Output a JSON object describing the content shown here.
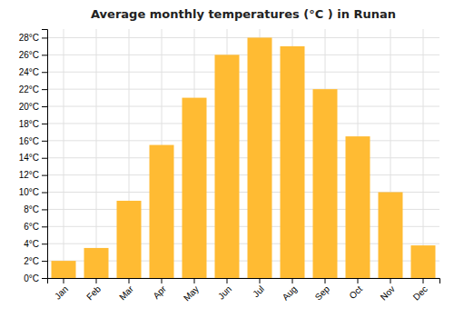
{
  "chart_data": {
    "type": "bar",
    "title": "Average monthly temperatures (°C ) in Runan",
    "categories": [
      "Jan",
      "Feb",
      "Mar",
      "Apr",
      "May",
      "Jun",
      "Jul",
      "Aug",
      "Sep",
      "Oct",
      "Nov",
      "Dec"
    ],
    "values": [
      2,
      3.5,
      9,
      15.5,
      21,
      26,
      28,
      27,
      22,
      16.5,
      10,
      3.8
    ],
    "color": "#FFBB33",
    "ylim": [
      0,
      29
    ],
    "yticks": [
      {
        "value": 0,
        "label": "0°C"
      },
      {
        "value": 2,
        "label": "2°C"
      },
      {
        "value": 4,
        "label": "4°C"
      },
      {
        "value": 6,
        "label": "6°C"
      },
      {
        "value": 8,
        "label": "8°C"
      },
      {
        "value": 10,
        "label": "10°C"
      },
      {
        "value": 12,
        "label": "12°C"
      },
      {
        "value": 14,
        "label": "14°C"
      },
      {
        "value": 16,
        "label": "16°C"
      },
      {
        "value": 18,
        "label": "18°C"
      },
      {
        "value": 20,
        "label": "20°C"
      },
      {
        "value": 22,
        "label": "22°C"
      },
      {
        "value": 24,
        "label": "24°C"
      },
      {
        "value": 26,
        "label": "26°C"
      },
      {
        "value": 28,
        "label": "28°C"
      }
    ],
    "grid": true
  }
}
